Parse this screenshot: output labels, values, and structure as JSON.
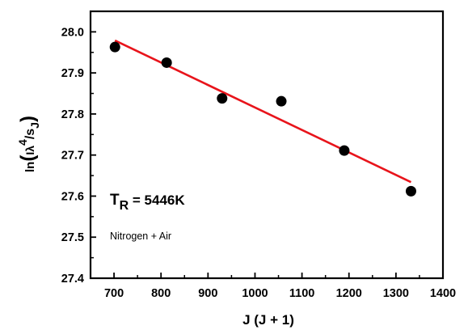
{
  "chart_data": {
    "type": "scatter",
    "xlabel": "J (J + 1)",
    "ylabel_parts": {
      "prefix": "ln",
      "paren_open": "(",
      "lambda_text": "Iλ",
      "sup": "4",
      "slash": "/s",
      "sub": "J",
      "paren_close": ")"
    },
    "xlim": [
      650,
      1400
    ],
    "ylim": [
      27.4,
      28.05
    ],
    "xticks": [
      "700",
      "800",
      "900",
      "1000",
      "1100",
      "1200",
      "1300",
      "1400"
    ],
    "yticks": [
      "27.4",
      "27.5",
      "27.6",
      "27.7",
      "27.8",
      "27.9",
      "28.0"
    ],
    "grid": false,
    "points": {
      "x": [
        702,
        812,
        930,
        1056,
        1190,
        1332
      ],
      "y": [
        27.963,
        27.925,
        27.838,
        27.831,
        27.711,
        27.612
      ],
      "color": "#000000"
    },
    "fit_line": {
      "x": [
        702,
        1332
      ],
      "y": [
        27.979,
        27.634
      ],
      "color": "#e8141b"
    },
    "annotations": {
      "temperature": {
        "main": "T",
        "sub": "R",
        "rest": " = 5446K"
      },
      "gas": "Nitrogen + Air"
    }
  }
}
